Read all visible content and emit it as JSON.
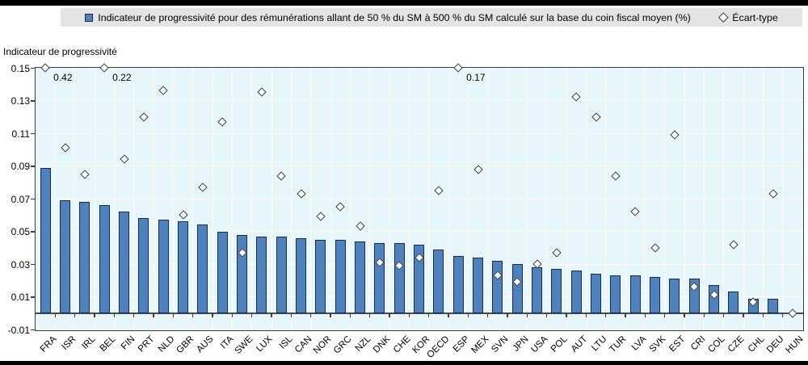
{
  "legend": {
    "series_label": "Indicateur de progressivité pour des rémunérations allant de 50 % du SM à 500 % du SM calculé sur la base du coin fiscal moyen (%)",
    "stddev_label": "Écart-type"
  },
  "axis_title": "Indicateur de progressivité",
  "chart_data": {
    "type": "bar",
    "title": "",
    "xlabel": "",
    "ylabel": "Indicateur de progressivité",
    "ylim": [
      -0.01,
      0.15
    ],
    "yticks": [
      0.15,
      0.13,
      0.11,
      0.09,
      0.07,
      0.05,
      0.03,
      0.01,
      -0.01
    ],
    "grid": true,
    "legend_position": "top",
    "display_cap": 0.15,
    "categories": [
      "FRA",
      "ISR",
      "IRL",
      "BEL",
      "FIN",
      "PRT",
      "NLD",
      "GBR",
      "AUS",
      "ITA",
      "SWE",
      "LUX",
      "ISL",
      "CAN",
      "NOR",
      "GRC",
      "NZL",
      "DNK",
      "CHE",
      "KOR",
      "OECD",
      "ESP",
      "MEX",
      "SVN",
      "JPN",
      "USA",
      "POL",
      "AUT",
      "LTU",
      "TUR",
      "LVA",
      "SVK",
      "EST",
      "CRI",
      "COL",
      "CZE",
      "CHL",
      "DEU",
      "HUN"
    ],
    "series": [
      {
        "name": "Indicateur de progressivité pour des rémunérations allant de 50 % du SM à 500 % du SM calculé sur la base du coin fiscal moyen (%)",
        "type": "bar",
        "values": [
          0.089,
          0.069,
          0.068,
          0.066,
          0.062,
          0.058,
          0.057,
          0.056,
          0.054,
          0.05,
          0.048,
          0.047,
          0.047,
          0.046,
          0.045,
          0.045,
          0.044,
          0.043,
          0.043,
          0.042,
          0.039,
          0.035,
          0.034,
          0.032,
          0.03,
          0.028,
          0.027,
          0.026,
          0.024,
          0.023,
          0.023,
          0.022,
          0.021,
          0.021,
          0.017,
          0.013,
          0.009,
          0.009,
          0.0
        ]
      },
      {
        "name": "Écart-type",
        "type": "scatter-diamond",
        "values": [
          0.42,
          0.101,
          0.085,
          0.22,
          0.094,
          0.12,
          0.136,
          0.06,
          0.077,
          0.117,
          0.037,
          0.135,
          0.084,
          0.073,
          0.059,
          0.065,
          0.053,
          0.031,
          0.029,
          0.034,
          0.075,
          0.17,
          0.088,
          0.023,
          0.019,
          0.03,
          0.037,
          0.132,
          0.12,
          0.084,
          0.062,
          0.04,
          0.109,
          0.016,
          0.011,
          0.042,
          0.007,
          0.073,
          0.0
        ]
      }
    ],
    "annotations": [
      {
        "category": "FRA",
        "text": "0.42"
      },
      {
        "category": "BEL",
        "text": "0.22"
      },
      {
        "category": "ESP",
        "text": "0.17"
      }
    ],
    "colors": {
      "bar_fill": "#4f81bd",
      "bar_border": "#1c2b45",
      "plot_bg": "#e7f6fa",
      "gridline": "#ffffff",
      "axis": "#3c3c3c",
      "legend_bg": "#e4e4e4",
      "frame_bar": "#000000",
      "diamond_fill": "#ffffff",
      "diamond_border": "#3a3a3a"
    }
  }
}
